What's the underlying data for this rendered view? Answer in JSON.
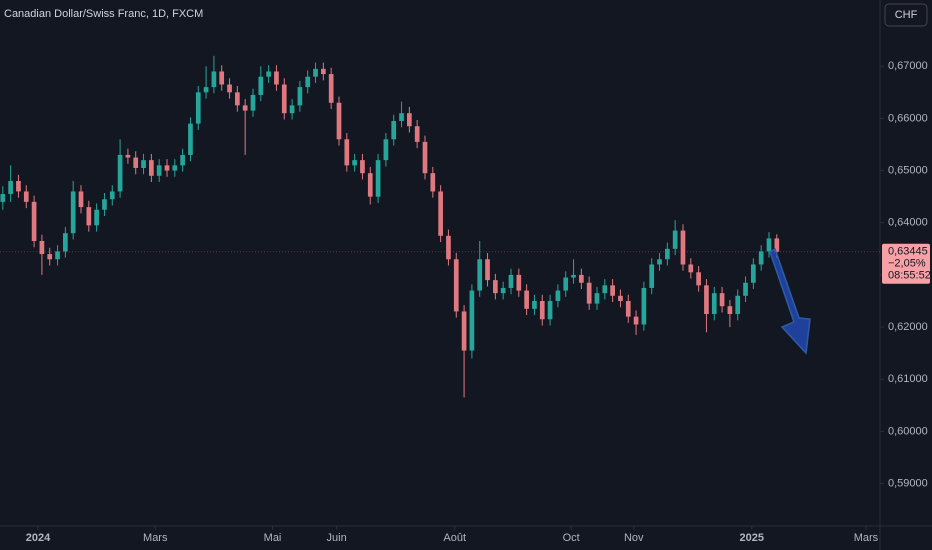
{
  "chart_data": {
    "type": "candlestick",
    "title": "Canadian Dollar/Swiss Franc, 1D, FXCM",
    "currency": "CHF",
    "up_color": "#26a69a",
    "down_color": "#e0787f",
    "grid": false,
    "xlim": [
      -0.36,
      112.2
    ],
    "xticks": [
      {
        "value": 4.5,
        "label": "2024"
      },
      {
        "value": 19.5,
        "label": "Mars"
      },
      {
        "value": 34.5,
        "label": "Mai"
      },
      {
        "value": 42.7,
        "label": "Juin"
      },
      {
        "value": 57.8,
        "label": "Août"
      },
      {
        "value": 72.7,
        "label": "Oct"
      },
      {
        "value": 80.7,
        "label": "Nov"
      },
      {
        "value": 95.8,
        "label": "2025"
      },
      {
        "value": 110.4,
        "label": "Mars"
      }
    ],
    "ylim": [
      0.5811,
      0.6827
    ],
    "yticks": [
      {
        "value": 0.59,
        "label": "0,59000"
      },
      {
        "value": 0.6,
        "label": "0,60000"
      },
      {
        "value": 0.61,
        "label": "0,61000"
      },
      {
        "value": 0.62,
        "label": "0,62000"
      },
      {
        "value": 0.63,
        "label": "0,63000"
      },
      {
        "value": 0.64,
        "label": "0,64000"
      },
      {
        "value": 0.65,
        "label": "0,65000"
      },
      {
        "value": 0.66,
        "label": "0,66000"
      },
      {
        "value": 0.67,
        "label": "0,67000"
      }
    ],
    "last_price": {
      "value": 0.63445,
      "label": "0,63445"
    },
    "change": "−2,05%",
    "countdown": "08:55:52",
    "ohlc": [
      [
        0.644,
        0.647,
        0.6425,
        0.6455
      ],
      [
        0.6455,
        0.651,
        0.644,
        0.648
      ],
      [
        0.648,
        0.6492,
        0.6448,
        0.646
      ],
      [
        0.646,
        0.6472,
        0.6428,
        0.644
      ],
      [
        0.644,
        0.6452,
        0.6353,
        0.6365
      ],
      [
        0.6365,
        0.6377,
        0.63,
        0.634
      ],
      [
        0.634,
        0.6352,
        0.6318,
        0.633
      ],
      [
        0.633,
        0.6357,
        0.6318,
        0.6345
      ],
      [
        0.6345,
        0.6392,
        0.6333,
        0.638
      ],
      [
        0.638,
        0.648,
        0.6368,
        0.646
      ],
      [
        0.646,
        0.6472,
        0.6418,
        0.643
      ],
      [
        0.643,
        0.6442,
        0.6383,
        0.6395
      ],
      [
        0.6395,
        0.6437,
        0.6383,
        0.6425
      ],
      [
        0.6425,
        0.6457,
        0.6413,
        0.6445
      ],
      [
        0.6445,
        0.6472,
        0.6433,
        0.646
      ],
      [
        0.646,
        0.656,
        0.6448,
        0.653
      ],
      [
        0.653,
        0.6542,
        0.6513,
        0.6525
      ],
      [
        0.6525,
        0.6537,
        0.6493,
        0.6505
      ],
      [
        0.6505,
        0.6532,
        0.6493,
        0.652
      ],
      [
        0.652,
        0.6532,
        0.6478,
        0.649
      ],
      [
        0.649,
        0.6522,
        0.6478,
        0.651
      ],
      [
        0.651,
        0.6522,
        0.6488,
        0.65
      ],
      [
        0.65,
        0.6522,
        0.6488,
        0.651
      ],
      [
        0.651,
        0.6542,
        0.6498,
        0.653
      ],
      [
        0.653,
        0.6602,
        0.6518,
        0.659
      ],
      [
        0.659,
        0.6662,
        0.6578,
        0.665
      ],
      [
        0.665,
        0.67,
        0.6638,
        0.666
      ],
      [
        0.666,
        0.672,
        0.6648,
        0.669
      ],
      [
        0.669,
        0.6702,
        0.6653,
        0.6665
      ],
      [
        0.6665,
        0.6677,
        0.6638,
        0.665
      ],
      [
        0.665,
        0.6662,
        0.6613,
        0.6625
      ],
      [
        0.6625,
        0.6637,
        0.653,
        0.6615
      ],
      [
        0.6615,
        0.6657,
        0.6603,
        0.6645
      ],
      [
        0.6645,
        0.67,
        0.6633,
        0.668
      ],
      [
        0.668,
        0.6702,
        0.6668,
        0.669
      ],
      [
        0.669,
        0.6702,
        0.6653,
        0.6665
      ],
      [
        0.6665,
        0.6677,
        0.6598,
        0.661
      ],
      [
        0.661,
        0.6637,
        0.6598,
        0.6625
      ],
      [
        0.6625,
        0.6672,
        0.6613,
        0.666
      ],
      [
        0.666,
        0.6692,
        0.6648,
        0.668
      ],
      [
        0.668,
        0.6707,
        0.6668,
        0.6695
      ],
      [
        0.6695,
        0.6707,
        0.6673,
        0.6685
      ],
      [
        0.6685,
        0.6697,
        0.6618,
        0.663
      ],
      [
        0.663,
        0.6642,
        0.6548,
        0.656
      ],
      [
        0.656,
        0.6572,
        0.6498,
        0.651
      ],
      [
        0.651,
        0.6532,
        0.6498,
        0.652
      ],
      [
        0.652,
        0.6532,
        0.6483,
        0.6495
      ],
      [
        0.6495,
        0.6507,
        0.6435,
        0.645
      ],
      [
        0.645,
        0.6532,
        0.6438,
        0.652
      ],
      [
        0.652,
        0.6572,
        0.6508,
        0.656
      ],
      [
        0.656,
        0.6607,
        0.6548,
        0.6595
      ],
      [
        0.6595,
        0.6632,
        0.6583,
        0.661
      ],
      [
        0.661,
        0.6622,
        0.6573,
        0.6585
      ],
      [
        0.6585,
        0.6597,
        0.6543,
        0.6555
      ],
      [
        0.6555,
        0.6567,
        0.6483,
        0.6495
      ],
      [
        0.6495,
        0.6507,
        0.6448,
        0.646
      ],
      [
        0.646,
        0.6472,
        0.6363,
        0.6375
      ],
      [
        0.6375,
        0.6387,
        0.6318,
        0.633
      ],
      [
        0.633,
        0.6342,
        0.6218,
        0.623
      ],
      [
        0.623,
        0.6242,
        0.6065,
        0.6155
      ],
      [
        0.6155,
        0.6282,
        0.614,
        0.627
      ],
      [
        0.627,
        0.6365,
        0.6258,
        0.633
      ],
      [
        0.633,
        0.6342,
        0.6278,
        0.629
      ],
      [
        0.629,
        0.6302,
        0.6253,
        0.6265
      ],
      [
        0.6265,
        0.6287,
        0.6253,
        0.6275
      ],
      [
        0.6275,
        0.6312,
        0.6263,
        0.63
      ],
      [
        0.63,
        0.6312,
        0.6258,
        0.627
      ],
      [
        0.627,
        0.6282,
        0.6223,
        0.6235
      ],
      [
        0.6235,
        0.6262,
        0.6223,
        0.625
      ],
      [
        0.625,
        0.6262,
        0.6203,
        0.6215
      ],
      [
        0.6215,
        0.6262,
        0.6203,
        0.625
      ],
      [
        0.625,
        0.6282,
        0.6238,
        0.627
      ],
      [
        0.627,
        0.6307,
        0.6258,
        0.6295
      ],
      [
        0.6295,
        0.633,
        0.6283,
        0.63
      ],
      [
        0.63,
        0.6312,
        0.6273,
        0.6285
      ],
      [
        0.6285,
        0.6297,
        0.6233,
        0.6245
      ],
      [
        0.6245,
        0.6277,
        0.6233,
        0.6265
      ],
      [
        0.6265,
        0.6292,
        0.6253,
        0.628
      ],
      [
        0.628,
        0.6292,
        0.6248,
        0.626
      ],
      [
        0.626,
        0.6272,
        0.6238,
        0.625
      ],
      [
        0.625,
        0.6262,
        0.6208,
        0.622
      ],
      [
        0.622,
        0.6232,
        0.6185,
        0.6205
      ],
      [
        0.6205,
        0.6287,
        0.6193,
        0.6275
      ],
      [
        0.6275,
        0.6332,
        0.6263,
        0.632
      ],
      [
        0.632,
        0.6342,
        0.6308,
        0.633
      ],
      [
        0.633,
        0.6362,
        0.6318,
        0.635
      ],
      [
        0.635,
        0.6405,
        0.6338,
        0.6385
      ],
      [
        0.6385,
        0.6397,
        0.6308,
        0.632
      ],
      [
        0.632,
        0.6332,
        0.6293,
        0.6305
      ],
      [
        0.6305,
        0.6317,
        0.6268,
        0.628
      ],
      [
        0.628,
        0.6292,
        0.619,
        0.6225
      ],
      [
        0.6225,
        0.6277,
        0.6213,
        0.6265
      ],
      [
        0.6265,
        0.6277,
        0.6228,
        0.624
      ],
      [
        0.624,
        0.6252,
        0.62,
        0.6225
      ],
      [
        0.6225,
        0.6272,
        0.6213,
        0.626
      ],
      [
        0.626,
        0.6297,
        0.6248,
        0.6285
      ],
      [
        0.6285,
        0.6332,
        0.6273,
        0.632
      ],
      [
        0.632,
        0.6357,
        0.6308,
        0.6345
      ],
      [
        0.6345,
        0.6382,
        0.6333,
        0.637
      ],
      [
        0.637,
        0.6378,
        0.6333,
        0.63445
      ]
    ]
  }
}
